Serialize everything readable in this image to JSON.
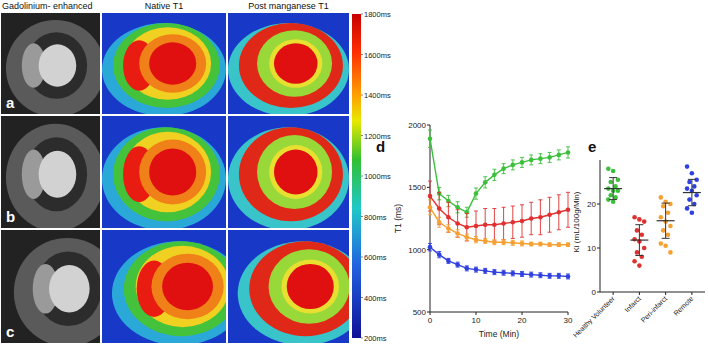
{
  "figure": {
    "column_titles": [
      "Gadolinium- enhanced",
      "Native T1",
      "Post manganese T1"
    ],
    "row_labels": [
      "a",
      "b",
      "c"
    ],
    "colorbar": {
      "range": [
        200,
        1800
      ],
      "ticks": [
        {
          "value": 1800,
          "label": "1800ms"
        },
        {
          "value": 1600,
          "label": "1600ms"
        },
        {
          "value": 1400,
          "label": "1400ms"
        },
        {
          "value": 1200,
          "label": "1200ms"
        },
        {
          "value": 1000,
          "label": "1000ms"
        },
        {
          "value": 800,
          "label": "800ms"
        },
        {
          "value": 600,
          "label": "600ms"
        },
        {
          "value": 400,
          "label": "400ms"
        },
        {
          "value": 200,
          "label": "200ms"
        }
      ]
    }
  },
  "chart_data": [
    {
      "type": "line",
      "title": "d",
      "x_label": "Time (Min)",
      "y_label": "T1 (ms)",
      "x": [
        0,
        2,
        4,
        6,
        8,
        10,
        12,
        14,
        16,
        18,
        20,
        22,
        24,
        26,
        28,
        30
      ],
      "series": [
        {
          "color": "#3cc03c",
          "values": [
            1890,
            1450,
            1390,
            1340,
            1300,
            1450,
            1540,
            1600,
            1650,
            1680,
            1700,
            1720,
            1730,
            1740,
            1760,
            1780
          ],
          "errors": [
            70,
            50,
            45,
            45,
            40,
            45,
            45,
            45,
            40,
            40,
            40,
            40,
            40,
            40,
            40,
            45
          ]
        },
        {
          "color": "#e03030",
          "values": [
            1430,
            1330,
            1260,
            1210,
            1180,
            1190,
            1200,
            1200,
            1210,
            1220,
            1230,
            1250,
            1260,
            1280,
            1300,
            1320
          ],
          "errors": [
            120,
            130,
            120,
            110,
            110,
            120,
            130,
            130,
            130,
            130,
            130,
            130,
            140,
            140,
            140,
            140
          ]
        },
        {
          "color": "#f5a030",
          "values": [
            1340,
            1220,
            1170,
            1130,
            1100,
            1080,
            1070,
            1060,
            1060,
            1055,
            1050,
            1045,
            1045,
            1040,
            1040,
            1040
          ],
          "errors": [
            60,
            40,
            30,
            30,
            25,
            25,
            20,
            20,
            20,
            20,
            20,
            15,
            15,
            15,
            15,
            15
          ]
        },
        {
          "color": "#3040e0",
          "values": [
            1020,
            960,
            910,
            880,
            850,
            840,
            830,
            820,
            815,
            810,
            805,
            800,
            795,
            790,
            790,
            785
          ],
          "errors": [
            30,
            25,
            20,
            20,
            20,
            20,
            20,
            20,
            20,
            20,
            20,
            20,
            20,
            20,
            20,
            20
          ]
        }
      ],
      "marker": "circle",
      "grid": false,
      "xlim": [
        0,
        30
      ],
      "xticks": [
        0,
        10,
        20,
        30
      ],
      "ylim": [
        500,
        2000
      ],
      "yticks": [
        500,
        1000,
        1500,
        2000
      ]
    },
    {
      "type": "dot",
      "title": "e",
      "y_label": "Ki (mL/100g/Min)",
      "categories": [
        "Healthy Volunteer",
        "Infarct",
        "Peri-infarct",
        "Remote"
      ],
      "colors": [
        "#3cc03c",
        "#e03030",
        "#f5a030",
        "#3040e0"
      ],
      "values": [
        [
          28,
          27.5,
          25.5,
          25,
          24,
          23.5,
          23,
          23,
          22,
          21.5,
          21,
          20.5
        ],
        [
          17,
          16.5,
          16,
          14,
          13,
          12,
          11.5,
          10,
          9,
          8,
          7,
          6
        ],
        [
          21.5,
          20.5,
          20,
          19.5,
          18,
          17,
          16,
          15,
          14,
          13,
          11,
          10.5,
          9
        ],
        [
          28.5,
          27,
          25.5,
          25,
          24,
          23.5,
          23,
          22,
          21,
          20,
          19,
          18
        ]
      ],
      "means": [
        23.5,
        11.8,
        16.2,
        22.6
      ],
      "sd": [
        2.5,
        3.5,
        4,
        3
      ],
      "grid": false,
      "ylim": [
        0,
        30
      ],
      "yticks": [
        0,
        10,
        20
      ]
    }
  ]
}
